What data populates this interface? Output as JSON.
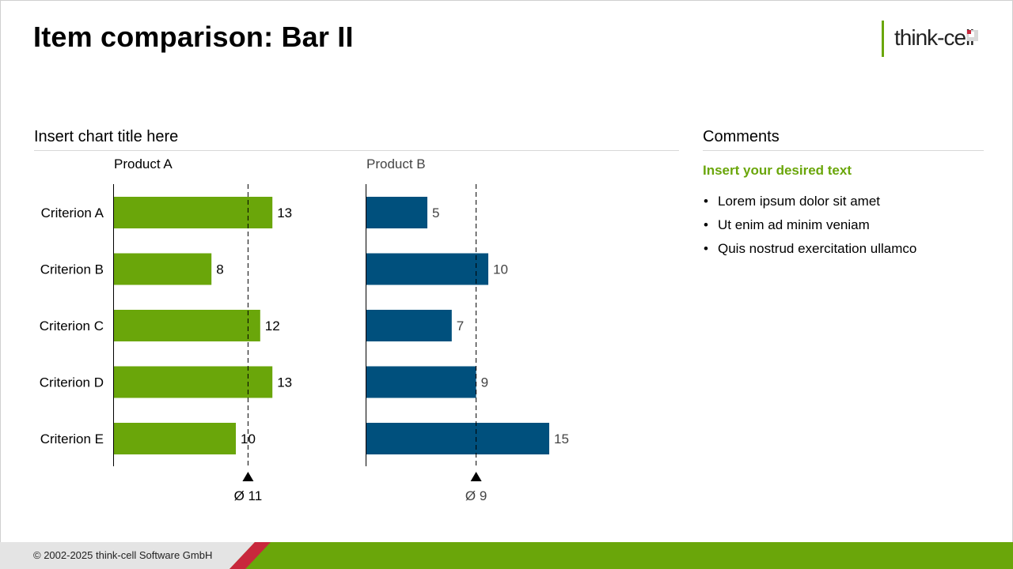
{
  "slide": {
    "title": "Item comparison: Bar II",
    "logo_text": "think-cell",
    "footer": "© 2002-2025 think-cell Software GmbH"
  },
  "chart_title": "Insert chart title here",
  "comments": {
    "heading": "Comments",
    "subheading": "Insert your desired text",
    "bullets": [
      "Lorem ipsum dolor sit amet",
      "Ut enim ad minim veniam",
      "Quis nostrud exercitation ullamco"
    ]
  },
  "colors": {
    "product_a": "#6aa60a",
    "product_b": "#00507d",
    "accent_red": "#c8283c",
    "footer_green": "#6aa60a"
  },
  "chart_data": [
    {
      "type": "bar",
      "orientation": "horizontal",
      "series_name": "Product A",
      "categories": [
        "Criterion A",
        "Criterion B",
        "Criterion C",
        "Criterion D",
        "Criterion E"
      ],
      "values": [
        13,
        8,
        12,
        13,
        10
      ],
      "average": 11,
      "average_label": "Ø 11",
      "color": "#6aa60a"
    },
    {
      "type": "bar",
      "orientation": "horizontal",
      "series_name": "Product B",
      "categories": [
        "Criterion A",
        "Criterion B",
        "Criterion C",
        "Criterion D",
        "Criterion E"
      ],
      "values": [
        5,
        10,
        7,
        9,
        15
      ],
      "average": 9,
      "average_label": "Ø 9",
      "color": "#00507d"
    }
  ]
}
